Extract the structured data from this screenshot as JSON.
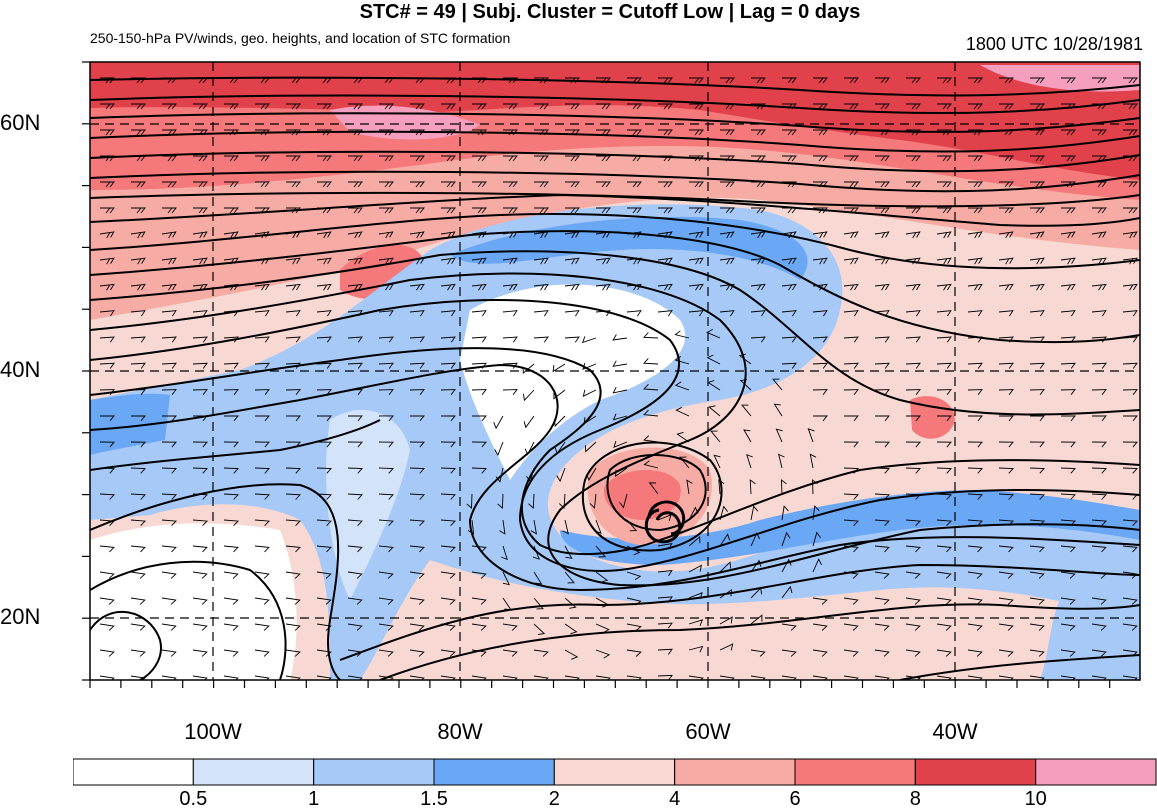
{
  "header": {
    "title": "STC# = 49 | Subj. Cluster = Cutoff Low | Lag = 0 days",
    "subtitle_left": "250-150-hPa PV/winds, geo. heights, and location of STC formation",
    "subtitle_right": "1800 UTC  10/28/1981"
  },
  "map": {
    "lat_labels": [
      "60N",
      "40N",
      "20N"
    ],
    "lon_labels": [
      "100W",
      "80W",
      "60W",
      "40W"
    ],
    "stc_marker": "6",
    "marker_icon": "tropical-cyclone-symbol",
    "region": "North Atlantic / Eastern North America"
  },
  "colorbar": {
    "levels": [
      "0.5",
      "1",
      "1.5",
      "2",
      "4",
      "6",
      "8",
      "10"
    ],
    "colors": [
      "#ffffff",
      "#d2e3fa",
      "#a7c9f7",
      "#6aa7f5",
      "#f8d8d2",
      "#f6aca5",
      "#f5787a",
      "#e0414b",
      "#f59ebd"
    ]
  }
}
